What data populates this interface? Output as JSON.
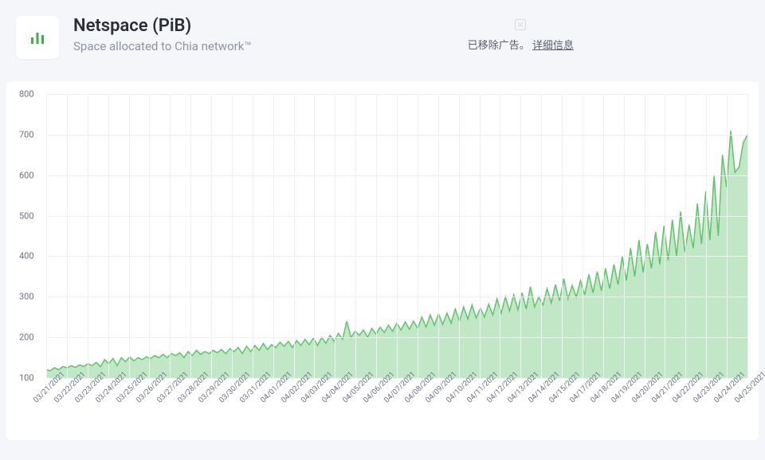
{
  "header": {
    "title": "Netspace (PiB)",
    "subtitle": "Space allocated to Chia network™",
    "icon_color": "#3eb049",
    "ad_removed": "已移除广告。",
    "ad_details": "详细信息"
  },
  "chart": {
    "type": "area",
    "background_color": "#ffffff",
    "page_background": "#f5f6fa",
    "line_color": "#5fc46a",
    "fill_color": "#b7e3bc",
    "fill_opacity": 0.85,
    "grid_color": "#eef0f4",
    "tick_font_color": "#6b6f82",
    "tick_font_size": 11,
    "xlabel_font_size": 9.5,
    "xlabel_rotation": -45,
    "ylim": [
      100,
      800
    ],
    "ytick_step": 100,
    "yticks": [
      100,
      200,
      300,
      400,
      500,
      600,
      700,
      800
    ],
    "x_categories": [
      "03/21/2021",
      "03/22/2021",
      "03/23/2021",
      "03/24/2021",
      "03/25/2021",
      "03/26/2021",
      "03/27/2021",
      "03/28/2021",
      "03/29/2021",
      "03/30/2021",
      "03/31/2021",
      "04/01/2021",
      "04/02/2021",
      "04/03/2021",
      "04/04/2021",
      "04/05/2021",
      "04/06/2021",
      "04/07/2021",
      "04/08/2021",
      "04/09/2021",
      "04/10/2021",
      "04/11/2021",
      "04/12/2021",
      "04/13/2021",
      "04/14/2021",
      "04/15/2021",
      "04/17/2021",
      "04/18/2021",
      "04/19/2021",
      "04/20/2021",
      "04/21/2021",
      "04/22/2021",
      "04/23/2021",
      "04/24/2021",
      "04/25/2021"
    ],
    "series": [
      120,
      118,
      125,
      120,
      128,
      125,
      130,
      126,
      132,
      128,
      135,
      130,
      138,
      128,
      145,
      135,
      148,
      130,
      150,
      140,
      152,
      142,
      150,
      145,
      152,
      148,
      155,
      150,
      158,
      150,
      160,
      155,
      162,
      150,
      165,
      155,
      168,
      158,
      165,
      160,
      168,
      162,
      170,
      160,
      172,
      165,
      175,
      160,
      178,
      165,
      180,
      168,
      185,
      170,
      182,
      175,
      188,
      178,
      190,
      175,
      192,
      180,
      195,
      182,
      198,
      180,
      200,
      185,
      205,
      190,
      210,
      195,
      240,
      200,
      215,
      205,
      218,
      200,
      222,
      208,
      225,
      212,
      230,
      215,
      235,
      218,
      238,
      220,
      240,
      222,
      250,
      225,
      255,
      230,
      258,
      232,
      260,
      235,
      270,
      240,
      275,
      245,
      280,
      248,
      272,
      250,
      282,
      255,
      295,
      260,
      300,
      265,
      305,
      268,
      310,
      270,
      325,
      275,
      300,
      280,
      320,
      285,
      330,
      290,
      345,
      295,
      328,
      300,
      340,
      305,
      355,
      310,
      362,
      315,
      370,
      320,
      380,
      330,
      400,
      340,
      420,
      350,
      440,
      360,
      430,
      370,
      460,
      380,
      475,
      390,
      490,
      400,
      510,
      410,
      478,
      420,
      530,
      430,
      560,
      440,
      600,
      450,
      650,
      570,
      710,
      607,
      620,
      680,
      700
    ]
  }
}
